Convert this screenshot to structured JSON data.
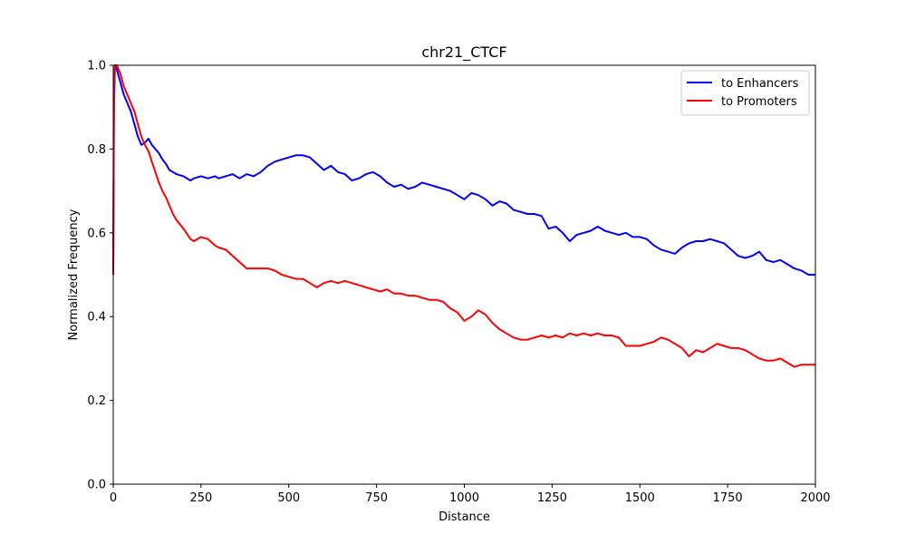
{
  "chart_data": {
    "type": "line",
    "title": "chr21_CTCF",
    "xlabel": "Distance",
    "ylabel": "Normalized Frequency",
    "xlim": [
      0,
      2000
    ],
    "ylim": [
      0.0,
      1.0
    ],
    "xticks": [
      "0",
      "250",
      "500",
      "750",
      "1000",
      "1250",
      "1500",
      "1750",
      "2000"
    ],
    "yticks": [
      "0.0",
      "0.2",
      "0.4",
      "0.6",
      "0.8",
      "1.0"
    ],
    "grid": false,
    "legend": "top-right",
    "series": [
      {
        "name": "to Enhancers",
        "color": "#0000ff",
        "x": [
          0,
          2,
          5,
          10,
          20,
          30,
          40,
          50,
          60,
          70,
          80,
          90,
          100,
          110,
          120,
          130,
          140,
          150,
          160,
          170,
          180,
          200,
          220,
          230,
          250,
          270,
          290,
          300,
          320,
          340,
          360,
          380,
          400,
          420,
          440,
          460,
          480,
          500,
          520,
          540,
          560,
          580,
          600,
          620,
          640,
          660,
          680,
          700,
          720,
          740,
          760,
          780,
          800,
          820,
          840,
          860,
          880,
          900,
          920,
          940,
          960,
          980,
          1000,
          1020,
          1040,
          1060,
          1080,
          1100,
          1120,
          1140,
          1160,
          1180,
          1200,
          1220,
          1240,
          1260,
          1280,
          1300,
          1320,
          1340,
          1360,
          1380,
          1400,
          1420,
          1440,
          1460,
          1480,
          1500,
          1520,
          1540,
          1560,
          1580,
          1600,
          1620,
          1640,
          1660,
          1680,
          1700,
          1720,
          1740,
          1760,
          1780,
          1800,
          1820,
          1840,
          1860,
          1880,
          1900,
          1920,
          1940,
          1960,
          1980,
          2000
        ],
        "values": [
          0.5,
          0.9,
          1.0,
          0.99,
          0.96,
          0.93,
          0.91,
          0.89,
          0.86,
          0.83,
          0.81,
          0.815,
          0.825,
          0.81,
          0.8,
          0.79,
          0.775,
          0.765,
          0.75,
          0.745,
          0.74,
          0.735,
          0.725,
          0.73,
          0.735,
          0.73,
          0.735,
          0.73,
          0.735,
          0.74,
          0.73,
          0.74,
          0.735,
          0.745,
          0.76,
          0.77,
          0.775,
          0.78,
          0.785,
          0.785,
          0.78,
          0.765,
          0.75,
          0.76,
          0.745,
          0.74,
          0.725,
          0.73,
          0.74,
          0.745,
          0.735,
          0.72,
          0.71,
          0.715,
          0.705,
          0.71,
          0.72,
          0.715,
          0.71,
          0.705,
          0.7,
          0.69,
          0.68,
          0.695,
          0.69,
          0.68,
          0.665,
          0.675,
          0.67,
          0.655,
          0.65,
          0.645,
          0.645,
          0.64,
          0.61,
          0.615,
          0.6,
          0.58,
          0.595,
          0.6,
          0.605,
          0.615,
          0.605,
          0.6,
          0.595,
          0.6,
          0.59,
          0.59,
          0.585,
          0.57,
          0.56,
          0.555,
          0.55,
          0.565,
          0.575,
          0.58,
          0.58,
          0.585,
          0.58,
          0.575,
          0.56,
          0.545,
          0.54,
          0.545,
          0.555,
          0.535,
          0.53,
          0.535,
          0.525,
          0.515,
          0.51,
          0.5,
          0.5
        ]
      },
      {
        "name": "to Promoters",
        "color": "#ff0000",
        "x": [
          0,
          2,
          5,
          10,
          20,
          30,
          40,
          50,
          60,
          70,
          80,
          90,
          100,
          110,
          120,
          130,
          140,
          150,
          160,
          170,
          180,
          200,
          220,
          230,
          250,
          270,
          290,
          300,
          320,
          340,
          360,
          380,
          400,
          420,
          440,
          460,
          480,
          500,
          520,
          540,
          560,
          580,
          600,
          620,
          640,
          660,
          680,
          700,
          720,
          740,
          760,
          780,
          800,
          820,
          840,
          860,
          880,
          900,
          920,
          940,
          960,
          980,
          1000,
          1020,
          1040,
          1060,
          1080,
          1100,
          1120,
          1140,
          1160,
          1180,
          1200,
          1220,
          1240,
          1260,
          1280,
          1300,
          1320,
          1340,
          1360,
          1380,
          1400,
          1420,
          1440,
          1460,
          1480,
          1500,
          1520,
          1540,
          1560,
          1580,
          1600,
          1620,
          1640,
          1660,
          1680,
          1700,
          1720,
          1740,
          1760,
          1780,
          1800,
          1820,
          1840,
          1860,
          1880,
          1900,
          1920,
          1940,
          1960,
          1980,
          2000
        ],
        "values": [
          0.5,
          0.95,
          1.0,
          1.0,
          0.98,
          0.95,
          0.93,
          0.91,
          0.89,
          0.86,
          0.83,
          0.81,
          0.795,
          0.77,
          0.745,
          0.72,
          0.7,
          0.685,
          0.665,
          0.645,
          0.63,
          0.61,
          0.585,
          0.58,
          0.59,
          0.585,
          0.57,
          0.565,
          0.56,
          0.545,
          0.53,
          0.515,
          0.515,
          0.515,
          0.515,
          0.51,
          0.5,
          0.495,
          0.49,
          0.49,
          0.48,
          0.47,
          0.48,
          0.485,
          0.48,
          0.485,
          0.48,
          0.475,
          0.47,
          0.465,
          0.46,
          0.465,
          0.455,
          0.455,
          0.45,
          0.45,
          0.445,
          0.44,
          0.44,
          0.435,
          0.42,
          0.41,
          0.39,
          0.4,
          0.415,
          0.405,
          0.385,
          0.37,
          0.36,
          0.35,
          0.345,
          0.345,
          0.35,
          0.355,
          0.35,
          0.355,
          0.35,
          0.36,
          0.355,
          0.36,
          0.355,
          0.36,
          0.355,
          0.355,
          0.35,
          0.33,
          0.33,
          0.33,
          0.335,
          0.34,
          0.35,
          0.345,
          0.335,
          0.325,
          0.305,
          0.32,
          0.315,
          0.325,
          0.335,
          0.33,
          0.325,
          0.325,
          0.32,
          0.31,
          0.3,
          0.295,
          0.295,
          0.3,
          0.29,
          0.28,
          0.285,
          0.285,
          0.285
        ]
      }
    ]
  }
}
